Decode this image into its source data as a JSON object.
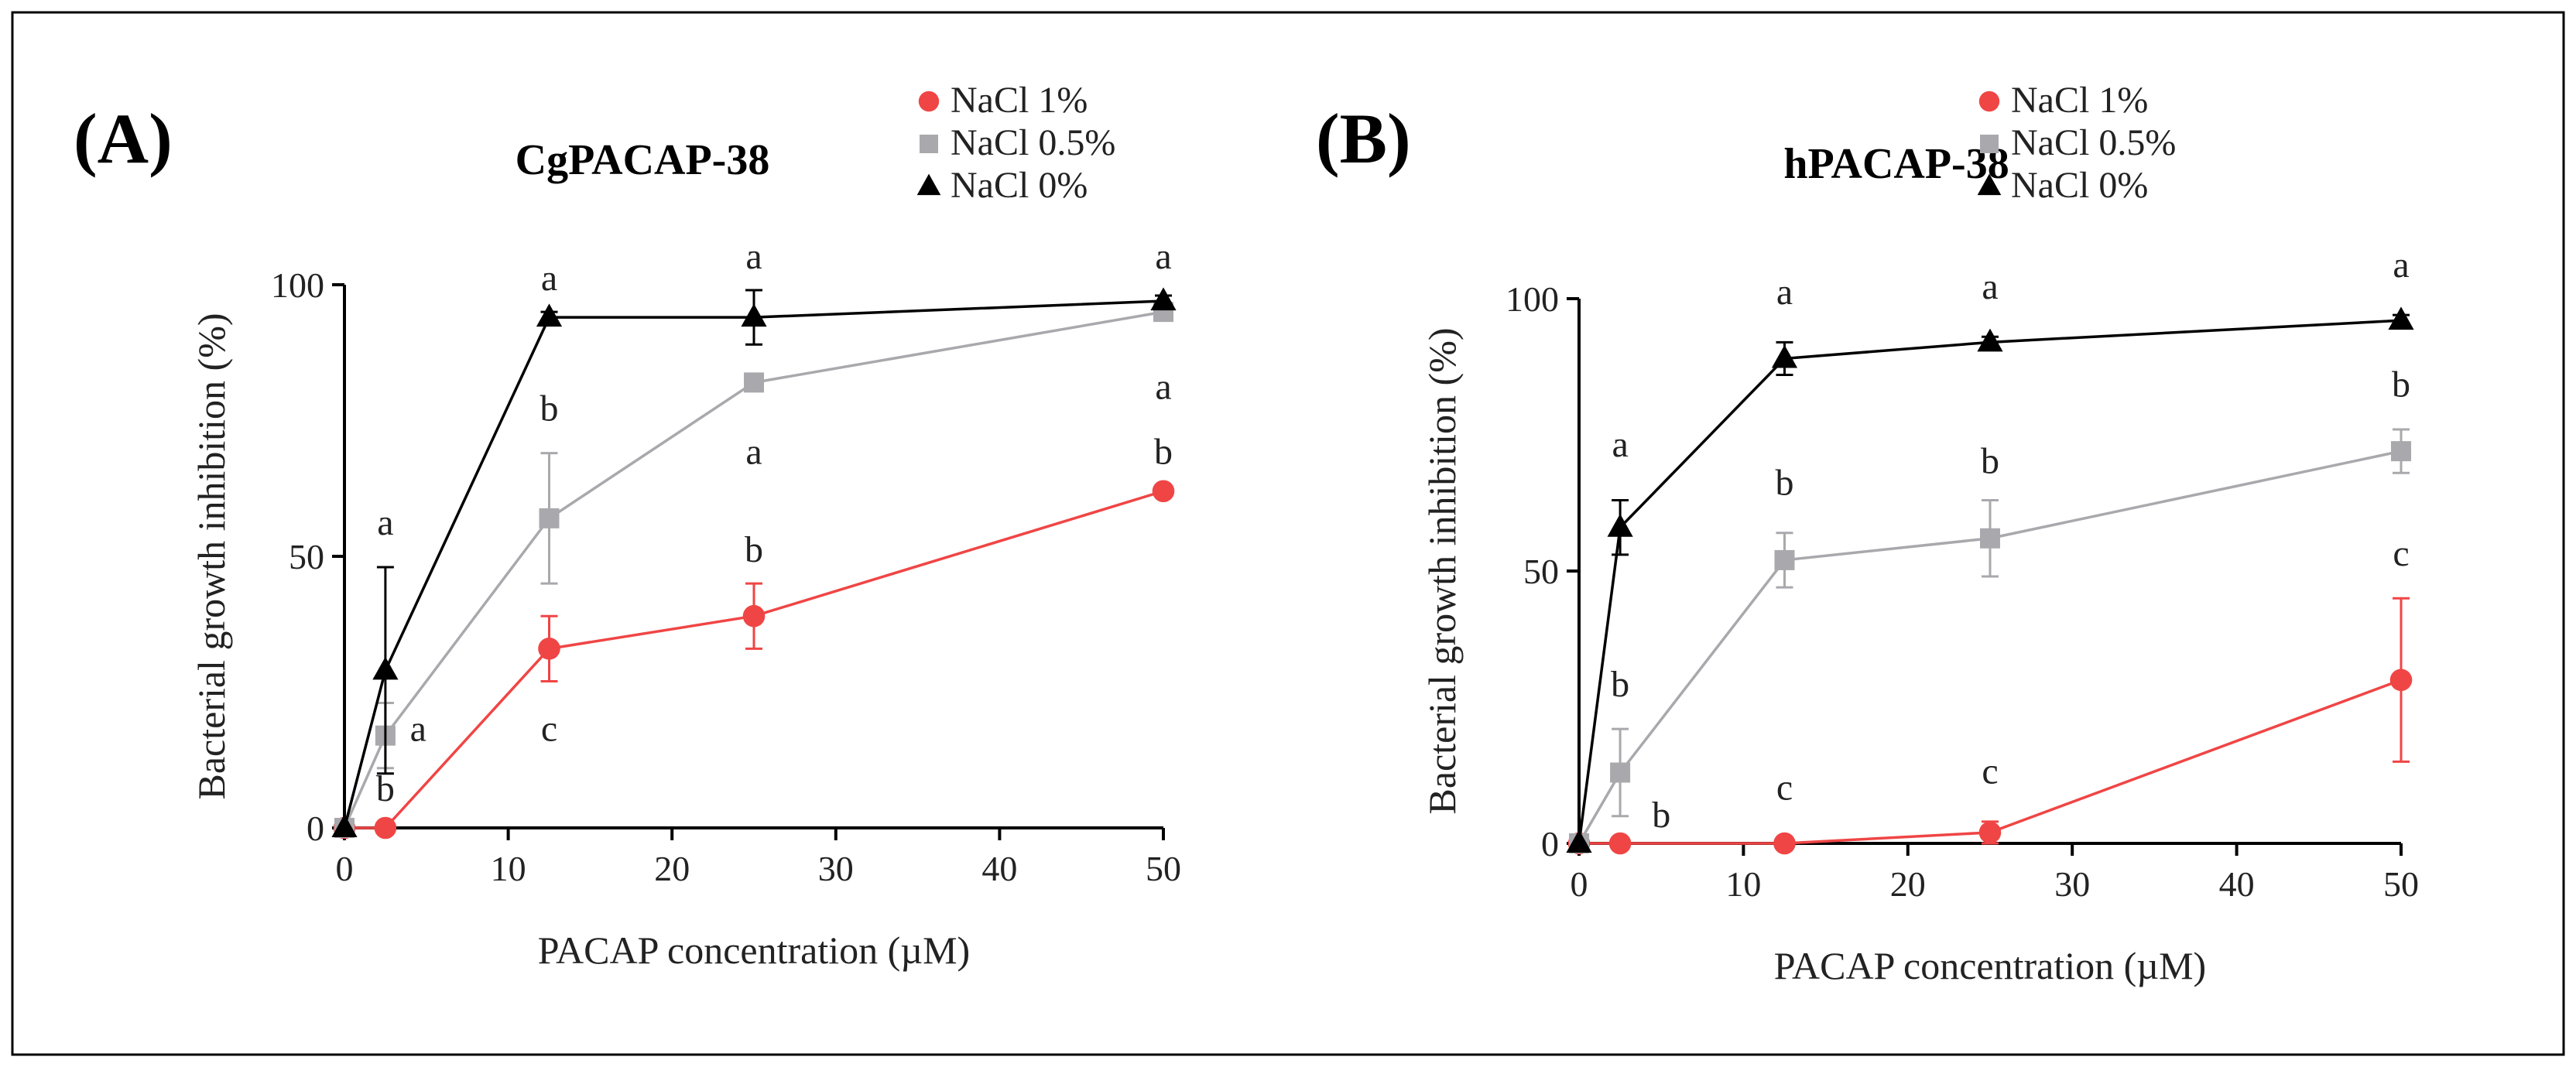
{
  "chart_data": [
    {
      "type": "line",
      "panel_label": "(A)",
      "title": "CgPACAP-38",
      "xlabel": "PACAP concentration (µM)",
      "ylabel": "Bacterial growth inhibition (%)",
      "xlim": [
        0,
        50
      ],
      "ylim": [
        0,
        100
      ],
      "x_ticks": [
        0,
        10,
        20,
        30,
        40,
        50
      ],
      "x_tick_labels": [
        "0",
        "10",
        "20",
        "30",
        "40",
        "50"
      ],
      "y_ticks": [
        0,
        50,
        100
      ],
      "y_tick_labels": [
        "0",
        "50",
        "100"
      ],
      "x": [
        0,
        2.5,
        12.5,
        25,
        50
      ],
      "legend_position": "top-right",
      "series": [
        {
          "name": "NaCl 1%",
          "color": "#f04545",
          "marker": "circle",
          "values": [
            0,
            0,
            33,
            39,
            62
          ],
          "errors": [
            0,
            0,
            6,
            6,
            1
          ]
        },
        {
          "name": "NaCl 0.5%",
          "color": "#a9a9ad",
          "marker": "square",
          "values": [
            0,
            17,
            57,
            82,
            95
          ],
          "errors": [
            0,
            6,
            12,
            1,
            1
          ]
        },
        {
          "name": "NaCl 0%",
          "color": "#000000",
          "marker": "triangle",
          "values": [
            0,
            29,
            94,
            94,
            97
          ],
          "errors": [
            0,
            19,
            1,
            5,
            1
          ]
        }
      ],
      "annotations": [
        {
          "text": "a",
          "x": 2.5,
          "y": 54
        },
        {
          "text": "a",
          "x": 4.5,
          "y": 16
        },
        {
          "text": "b",
          "x": 2.5,
          "y": 5
        },
        {
          "text": "a",
          "x": 12.5,
          "y": 99
        },
        {
          "text": "b",
          "x": 12.5,
          "y": 75
        },
        {
          "text": "c",
          "x": 12.5,
          "y": 16
        },
        {
          "text": "a",
          "x": 25,
          "y": 103
        },
        {
          "text": "a",
          "x": 25,
          "y": 67
        },
        {
          "text": "b",
          "x": 25,
          "y": 49
        },
        {
          "text": "a",
          "x": 50,
          "y": 103
        },
        {
          "text": "a",
          "x": 50,
          "y": 79
        },
        {
          "text": "b",
          "x": 50,
          "y": 67
        }
      ]
    },
    {
      "type": "line",
      "panel_label": "(B)",
      "title": "hPACAP-38",
      "xlabel": "PACAP concentration (µM)",
      "ylabel": "Bacterial growth inhibition (%)",
      "xlim": [
        0,
        50
      ],
      "ylim": [
        0,
        100
      ],
      "x_ticks": [
        0,
        10,
        20,
        30,
        40,
        50
      ],
      "x_tick_labels": [
        "0",
        "10",
        "20",
        "30",
        "40",
        "50"
      ],
      "y_ticks": [
        0,
        50,
        100
      ],
      "y_tick_labels": [
        "0",
        "50",
        "100"
      ],
      "x": [
        0,
        2.5,
        12.5,
        25,
        50
      ],
      "legend_position": "top-right",
      "series": [
        {
          "name": "NaCl 1%",
          "color": "#f04545",
          "marker": "circle",
          "values": [
            0,
            0,
            0,
            2,
            30
          ],
          "errors": [
            0,
            0,
            0,
            2,
            15
          ]
        },
        {
          "name": "NaCl 0.5%",
          "color": "#a9a9ad",
          "marker": "square",
          "values": [
            0,
            13,
            52,
            56,
            72
          ],
          "errors": [
            0,
            8,
            5,
            7,
            4
          ]
        },
        {
          "name": "NaCl 0%",
          "color": "#000000",
          "marker": "triangle",
          "values": [
            0,
            58,
            89,
            92,
            96
          ],
          "errors": [
            0,
            5,
            3,
            1,
            1
          ]
        }
      ],
      "annotations": [
        {
          "text": "a",
          "x": 2.5,
          "y": 71
        },
        {
          "text": "b",
          "x": 2.5,
          "y": 27
        },
        {
          "text": "b",
          "x": 5,
          "y": 3
        },
        {
          "text": "a",
          "x": 12.5,
          "y": 99
        },
        {
          "text": "b",
          "x": 12.5,
          "y": 64
        },
        {
          "text": "c",
          "x": 12.5,
          "y": 8
        },
        {
          "text": "a",
          "x": 25,
          "y": 100
        },
        {
          "text": "b",
          "x": 25,
          "y": 68
        },
        {
          "text": "c",
          "x": 25,
          "y": 11
        },
        {
          "text": "a",
          "x": 50,
          "y": 104
        },
        {
          "text": "b",
          "x": 50,
          "y": 82
        },
        {
          "text": "c",
          "x": 50,
          "y": 51
        }
      ]
    }
  ]
}
